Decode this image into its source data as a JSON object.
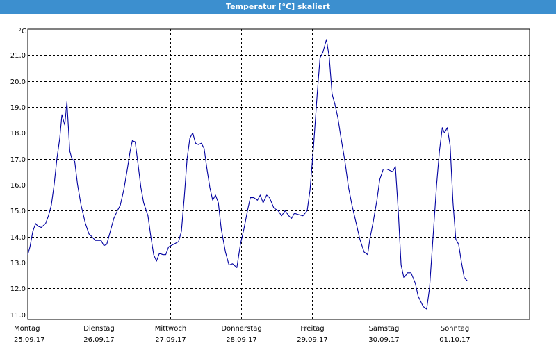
{
  "window": {
    "title": "Temperatur [°C] skaliert"
  },
  "chart_data": {
    "type": "line",
    "title": "Temperatur [°C] skaliert",
    "ylabel": "°C",
    "ylim": [
      10.8,
      22.0
    ],
    "yticks": [
      11.0,
      12.0,
      13.0,
      14.0,
      15.0,
      16.0,
      17.0,
      18.0,
      19.0,
      20.0,
      21.0
    ],
    "xlim": [
      0,
      7.2
    ],
    "grid": true,
    "days": [
      {
        "x": 0,
        "name": "Montag",
        "date": "25.09.17"
      },
      {
        "x": 1,
        "name": "Dienstag",
        "date": "26.09.17"
      },
      {
        "x": 2,
        "name": "Mittwoch",
        "date": "27.09.17"
      },
      {
        "x": 3,
        "name": "Donnerstag",
        "date": "28.09.17"
      },
      {
        "x": 4,
        "name": "Freitag",
        "date": "29.09.17"
      },
      {
        "x": 5,
        "name": "Samstag",
        "date": "30.09.17"
      },
      {
        "x": 6,
        "name": "Sonntag",
        "date": "01.10.17"
      }
    ],
    "series": [
      {
        "color": "#0000a0",
        "points": [
          [
            0.0,
            13.3
          ],
          [
            0.03,
            13.6
          ],
          [
            0.07,
            14.2
          ],
          [
            0.11,
            14.5
          ],
          [
            0.14,
            14.4
          ],
          [
            0.19,
            14.35
          ],
          [
            0.25,
            14.5
          ],
          [
            0.29,
            14.8
          ],
          [
            0.33,
            15.2
          ],
          [
            0.37,
            16.0
          ],
          [
            0.41,
            17.0
          ],
          [
            0.45,
            17.8
          ],
          [
            0.48,
            18.7
          ],
          [
            0.52,
            18.3
          ],
          [
            0.55,
            19.2
          ],
          [
            0.59,
            17.3
          ],
          [
            0.62,
            17.0
          ],
          [
            0.66,
            16.9
          ],
          [
            0.7,
            16.0
          ],
          [
            0.75,
            15.2
          ],
          [
            0.81,
            14.5
          ],
          [
            0.86,
            14.1
          ],
          [
            0.9,
            14.0
          ],
          [
            0.95,
            13.85
          ],
          [
            1.03,
            13.85
          ],
          [
            1.07,
            13.65
          ],
          [
            1.11,
            13.7
          ],
          [
            1.16,
            14.2
          ],
          [
            1.21,
            14.7
          ],
          [
            1.26,
            15.0
          ],
          [
            1.3,
            15.2
          ],
          [
            1.35,
            15.8
          ],
          [
            1.4,
            16.6
          ],
          [
            1.44,
            17.3
          ],
          [
            1.47,
            17.7
          ],
          [
            1.51,
            17.65
          ],
          [
            1.55,
            16.8
          ],
          [
            1.59,
            15.9
          ],
          [
            1.63,
            15.3
          ],
          [
            1.69,
            14.8
          ],
          [
            1.73,
            14.0
          ],
          [
            1.77,
            13.3
          ],
          [
            1.81,
            13.05
          ],
          [
            1.85,
            13.35
          ],
          [
            1.9,
            13.3
          ],
          [
            1.94,
            13.3
          ],
          [
            1.98,
            13.6
          ],
          [
            2.05,
            13.7
          ],
          [
            2.12,
            13.8
          ],
          [
            2.16,
            14.2
          ],
          [
            2.2,
            15.5
          ],
          [
            2.24,
            17.0
          ],
          [
            2.28,
            17.8
          ],
          [
            2.32,
            18.0
          ],
          [
            2.36,
            17.6
          ],
          [
            2.4,
            17.55
          ],
          [
            2.44,
            17.6
          ],
          [
            2.48,
            17.4
          ],
          [
            2.52,
            16.6
          ],
          [
            2.56,
            15.9
          ],
          [
            2.6,
            15.4
          ],
          [
            2.64,
            15.6
          ],
          [
            2.68,
            15.3
          ],
          [
            2.72,
            14.3
          ],
          [
            2.78,
            13.4
          ],
          [
            2.83,
            12.9
          ],
          [
            2.88,
            12.95
          ],
          [
            2.94,
            12.8
          ],
          [
            2.99,
            13.7
          ],
          [
            3.04,
            14.3
          ],
          [
            3.09,
            15.0
          ],
          [
            3.13,
            15.5
          ],
          [
            3.18,
            15.5
          ],
          [
            3.23,
            15.4
          ],
          [
            3.27,
            15.6
          ],
          [
            3.31,
            15.3
          ],
          [
            3.36,
            15.6
          ],
          [
            3.4,
            15.5
          ],
          [
            3.46,
            15.1
          ],
          [
            3.52,
            15.0
          ],
          [
            3.57,
            14.8
          ],
          [
            3.62,
            15.0
          ],
          [
            3.67,
            14.8
          ],
          [
            3.71,
            14.7
          ],
          [
            3.75,
            14.9
          ],
          [
            3.8,
            14.85
          ],
          [
            3.87,
            14.8
          ],
          [
            3.93,
            15.0
          ],
          [
            3.97,
            15.8
          ],
          [
            4.02,
            17.5
          ],
          [
            4.07,
            19.5
          ],
          [
            4.11,
            20.9
          ],
          [
            4.15,
            21.1
          ],
          [
            4.2,
            21.6
          ],
          [
            4.24,
            20.9
          ],
          [
            4.28,
            19.5
          ],
          [
            4.32,
            19.1
          ],
          [
            4.36,
            18.6
          ],
          [
            4.4,
            17.9
          ],
          [
            4.46,
            16.9
          ],
          [
            4.51,
            15.9
          ],
          [
            4.56,
            15.2
          ],
          [
            4.62,
            14.5
          ],
          [
            4.67,
            13.9
          ],
          [
            4.73,
            13.4
          ],
          [
            4.78,
            13.3
          ],
          [
            4.81,
            13.9
          ],
          [
            4.86,
            14.6
          ],
          [
            4.91,
            15.4
          ],
          [
            4.95,
            16.2
          ],
          [
            5.0,
            16.6
          ],
          [
            5.05,
            16.6
          ],
          [
            5.09,
            16.55
          ],
          [
            5.13,
            16.5
          ],
          [
            5.17,
            16.7
          ],
          [
            5.21,
            15.0
          ],
          [
            5.25,
            12.9
          ],
          [
            5.29,
            12.4
          ],
          [
            5.34,
            12.6
          ],
          [
            5.39,
            12.6
          ],
          [
            5.45,
            12.2
          ],
          [
            5.49,
            11.7
          ],
          [
            5.56,
            11.3
          ],
          [
            5.61,
            11.2
          ],
          [
            5.65,
            12.0
          ],
          [
            5.7,
            14.0
          ],
          [
            5.75,
            16.0
          ],
          [
            5.79,
            17.3
          ],
          [
            5.83,
            18.2
          ],
          [
            5.86,
            18.0
          ],
          [
            5.9,
            18.2
          ],
          [
            5.94,
            17.5
          ],
          [
            5.98,
            15.3
          ],
          [
            6.02,
            13.9
          ],
          [
            6.06,
            13.7
          ],
          [
            6.1,
            13.0
          ],
          [
            6.14,
            12.4
          ],
          [
            6.18,
            12.3
          ]
        ]
      }
    ]
  }
}
